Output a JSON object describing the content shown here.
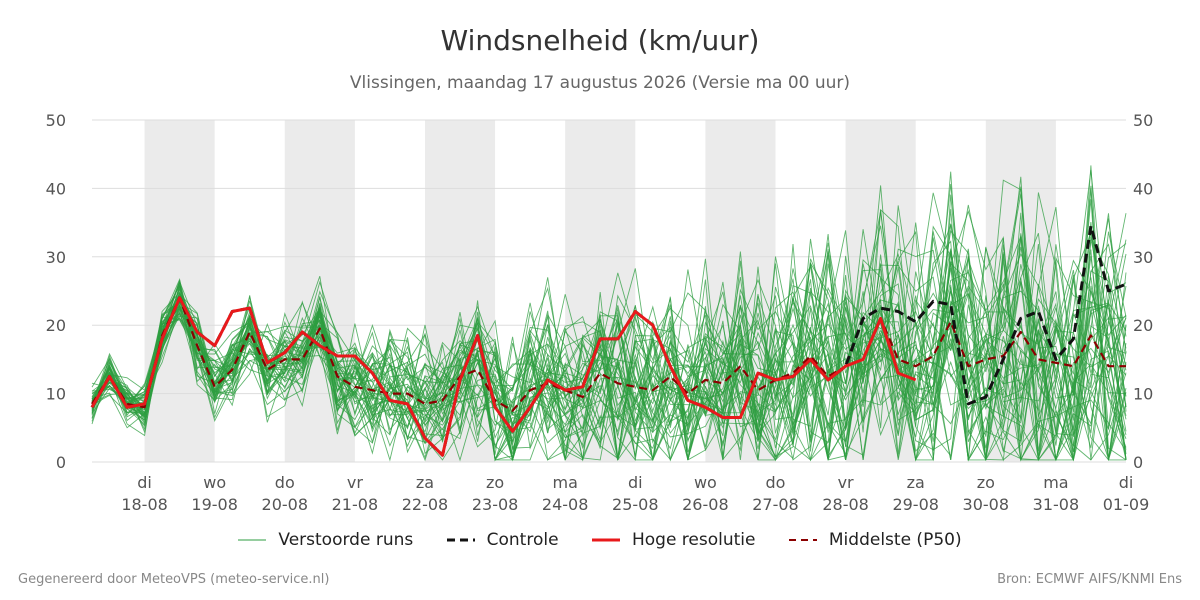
{
  "header": {
    "title": "Windsnelheid (km/uur)",
    "subtitle": "Vlissingen, maandag 17 augustus 2026 (Versie ma 00 uur)"
  },
  "footer": {
    "left": "Gegenereerd door MeteoVPS (meteo-service.nl)",
    "right": "Bron: ECMWF AIFS/KNMI Ens"
  },
  "legend": {
    "perturbed": "Verstoorde runs",
    "control": "Controle",
    "high_res": "Hoge resolutie",
    "median": "Middelste (P50)"
  },
  "colors": {
    "perturbed": "#2e9e40",
    "control": "#111111",
    "high_res": "#e8191b",
    "median": "#8b0000",
    "weekend_band": "#ebebeb",
    "grid": "#dddddd"
  },
  "chart_data": {
    "type": "line",
    "title": "Windsnelheid (km/uur)",
    "ylim": [
      0,
      50
    ],
    "yticks": [
      0,
      10,
      20,
      30,
      40,
      50
    ],
    "xlim": [
      "2026-08-17T06:00",
      "2026-09-01T00:00"
    ],
    "x_step_hours": 6,
    "x_start": "2026-08-17T06:00",
    "x_ticks": [
      {
        "day": "di",
        "date": "18-08"
      },
      {
        "day": "wo",
        "date": "19-08"
      },
      {
        "day": "do",
        "date": "20-08"
      },
      {
        "day": "vr",
        "date": "21-08"
      },
      {
        "day": "za",
        "date": "22-08"
      },
      {
        "day": "zo",
        "date": "23-08"
      },
      {
        "day": "ma",
        "date": "24-08"
      },
      {
        "day": "di",
        "date": "25-08"
      },
      {
        "day": "wo",
        "date": "26-08"
      },
      {
        "day": "do",
        "date": "27-08"
      },
      {
        "day": "vr",
        "date": "28-08"
      },
      {
        "day": "za",
        "date": "29-08"
      },
      {
        "day": "zo",
        "date": "30-08"
      },
      {
        "day": "ma",
        "date": "31-08"
      },
      {
        "day": "di",
        "date": "01-09"
      }
    ],
    "shaded_days": [
      "18-08",
      "20-08",
      "22-08",
      "24-08",
      "26-08",
      "28-08",
      "30-08"
    ],
    "grid": true,
    "legend_position": "bottom",
    "series": [
      {
        "name": "Hoge resolutie",
        "style": "solid",
        "values": [
          8,
          12.5,
          8,
          8.5,
          18,
          24,
          19,
          17,
          22,
          22.5,
          14.5,
          16,
          19,
          17,
          15.5,
          15.5,
          13,
          9,
          8.5,
          3.5,
          1,
          12,
          18.5,
          8,
          4.5,
          8,
          12,
          10.5,
          11,
          18,
          18,
          22,
          20,
          14,
          9,
          8,
          6.5,
          6.5,
          13,
          12,
          12.5,
          15,
          12,
          14,
          15,
          21,
          13,
          12
        ]
      },
      {
        "name": "Controle",
        "style": "dashed",
        "values": [
          8,
          12.5,
          8,
          8.5,
          18,
          24,
          19,
          17,
          22,
          22.5,
          14.5,
          16,
          19,
          17,
          15.5,
          15.5,
          13,
          9,
          8.5,
          3.5,
          1,
          12,
          18.5,
          8,
          4.5,
          8,
          12,
          10.5,
          11,
          18,
          18,
          22,
          20,
          14,
          9,
          8,
          6.5,
          6.5,
          13,
          12,
          12.5,
          15,
          12,
          14,
          21,
          22.5,
          22,
          20.5,
          23.5,
          23,
          8.5,
          9.5,
          15,
          21,
          22,
          15,
          18,
          34.5,
          25,
          26
        ]
      },
      {
        "name": "Middelste (P50)",
        "style": "dashed",
        "values": [
          8.5,
          12.5,
          8.5,
          8,
          18.5,
          24,
          17,
          11,
          13.5,
          19,
          13.5,
          15,
          15,
          19.5,
          12.5,
          11,
          10.5,
          10,
          10,
          8.5,
          9,
          12.5,
          13.5,
          9,
          7.5,
          10.5,
          11.5,
          10.5,
          9.5,
          13,
          11.5,
          11,
          10.5,
          12.5,
          10,
          12,
          11.5,
          14,
          10.5,
          12,
          13,
          15.5,
          12.5,
          14,
          15,
          21,
          15,
          14,
          15.5,
          20.5,
          14,
          15,
          15.5,
          19,
          15,
          14.5,
          14,
          18.5,
          14,
          14
        ]
      }
    ]
  }
}
